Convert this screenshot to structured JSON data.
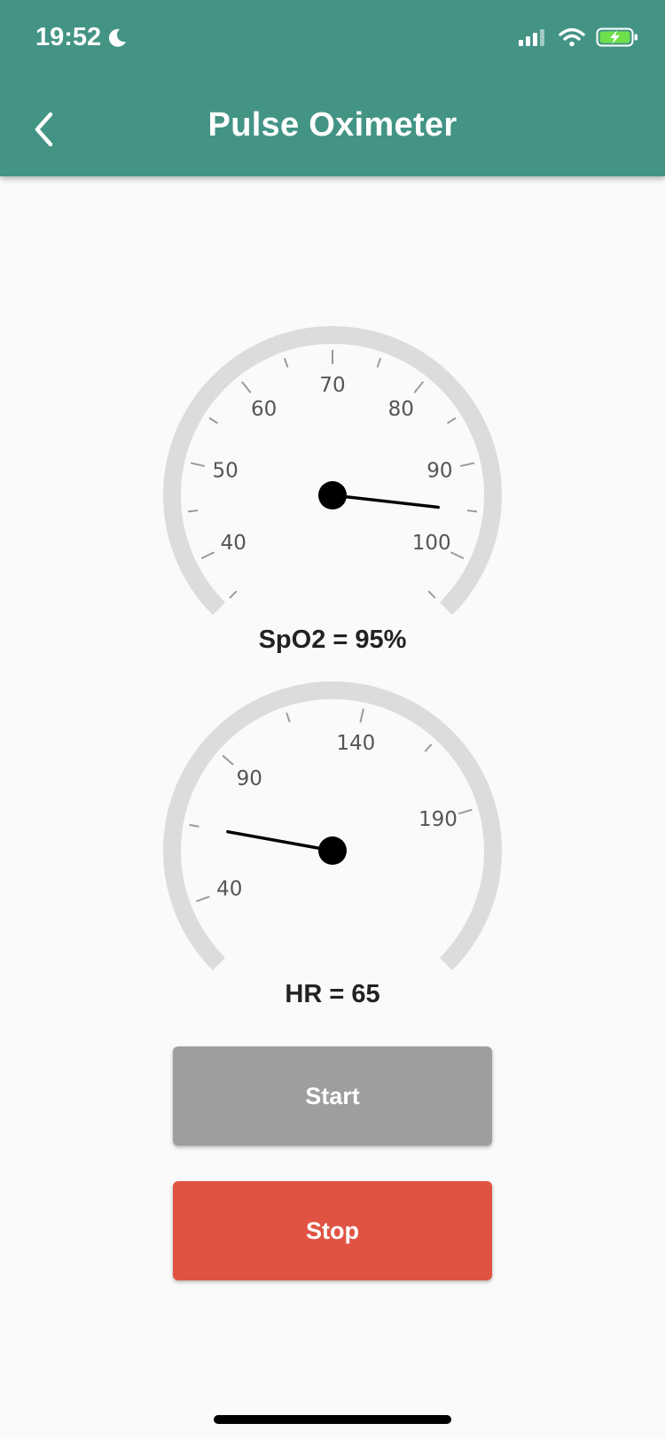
{
  "status_bar": {
    "time": "19:52"
  },
  "header": {
    "title": "Pulse Oximeter",
    "back_icon": "chevron-left-icon"
  },
  "gauges": [
    {
      "id": "spo2",
      "label": "SpO2 = 95%",
      "min": 35,
      "max": 105,
      "value": 95,
      "start_angle": 225,
      "sweep": 270,
      "major_labels": [
        40,
        50,
        60,
        70,
        80,
        90,
        100
      ],
      "minor_ticks": [
        35,
        45,
        55,
        65,
        75,
        85,
        95,
        105
      ]
    },
    {
      "id": "hr",
      "label": "HR = 65",
      "min": 20,
      "max": 240,
      "value": 65,
      "start_angle": 225,
      "sweep": 270,
      "major_labels": [
        40,
        90,
        140,
        190
      ],
      "minor_ticks": [
        65,
        115,
        165
      ]
    }
  ],
  "colors": {
    "header": "#439485",
    "start_button": "#9e9e9e",
    "stop_button": "#e05343",
    "gauge_track": "#dcdcdc",
    "needle": "#000000"
  },
  "buttons": {
    "start_label": "Start",
    "stop_label": "Stop"
  }
}
